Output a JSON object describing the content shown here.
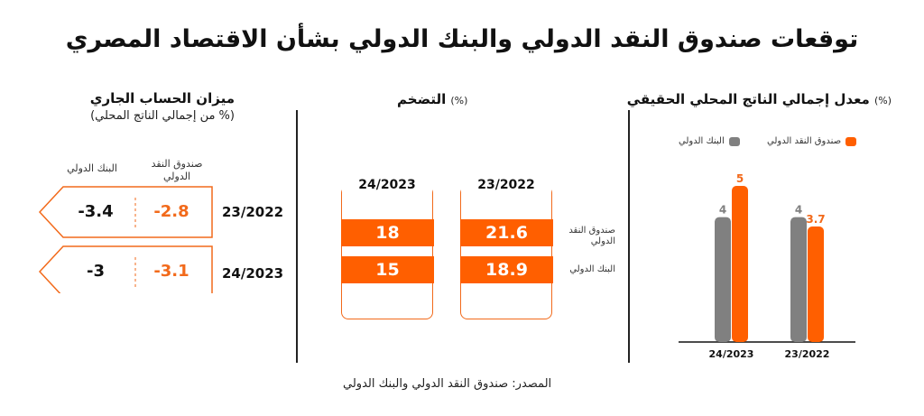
{
  "title": "توقعات صندوق النقد الدولي والبنك الدولي بشأن الاقتصاد المصري",
  "source": "المصدر: صندوق النقد الدولي والبنك الدولي",
  "colors": {
    "imf": "#ff5f00",
    "wb": "#808080",
    "accent": "#f26a1b"
  },
  "chart_data": [
    {
      "type": "bar",
      "title": "معدل إجمالي الناتج المحلي الحقيقي",
      "unit": "(%)",
      "categories": [
        "23/2022",
        "24/2023"
      ],
      "series": [
        {
          "name": "صندوق النقد الدولي",
          "values": [
            3.7,
            5
          ]
        },
        {
          "name": "البنك الدولي",
          "values": [
            4,
            4
          ]
        }
      ],
      "value_labels": {
        "imf": [
          "3.7",
          "5"
        ],
        "wb": [
          "4",
          "4"
        ]
      }
    },
    {
      "type": "table",
      "title": "التضخم",
      "unit": "(%)",
      "columns": [
        "23/2022",
        "24/2023"
      ],
      "rows": [
        {
          "name": "صندوق النقد الدولي",
          "values": [
            21.6,
            18
          ],
          "labels": [
            "21.6",
            "18"
          ]
        },
        {
          "name": "البنك الدولي",
          "values": [
            18.9,
            15
          ],
          "labels": [
            "18.9",
            "15"
          ]
        }
      ]
    },
    {
      "type": "table",
      "title": "ميزان الحساب الجاري",
      "subtitle": "(% من إجمالي الناتج المحلي)",
      "columns": [
        "صندوق النقد الدولي",
        "البنك الدولي"
      ],
      "rows": [
        {
          "year": "23/2022",
          "values": [
            -2.8,
            -3.4
          ],
          "labels": [
            "-2.8",
            "-3.4"
          ]
        },
        {
          "year": "24/2023",
          "values": [
            -3.1,
            -3
          ],
          "labels": [
            "-3.1",
            "-3"
          ]
        }
      ]
    }
  ]
}
